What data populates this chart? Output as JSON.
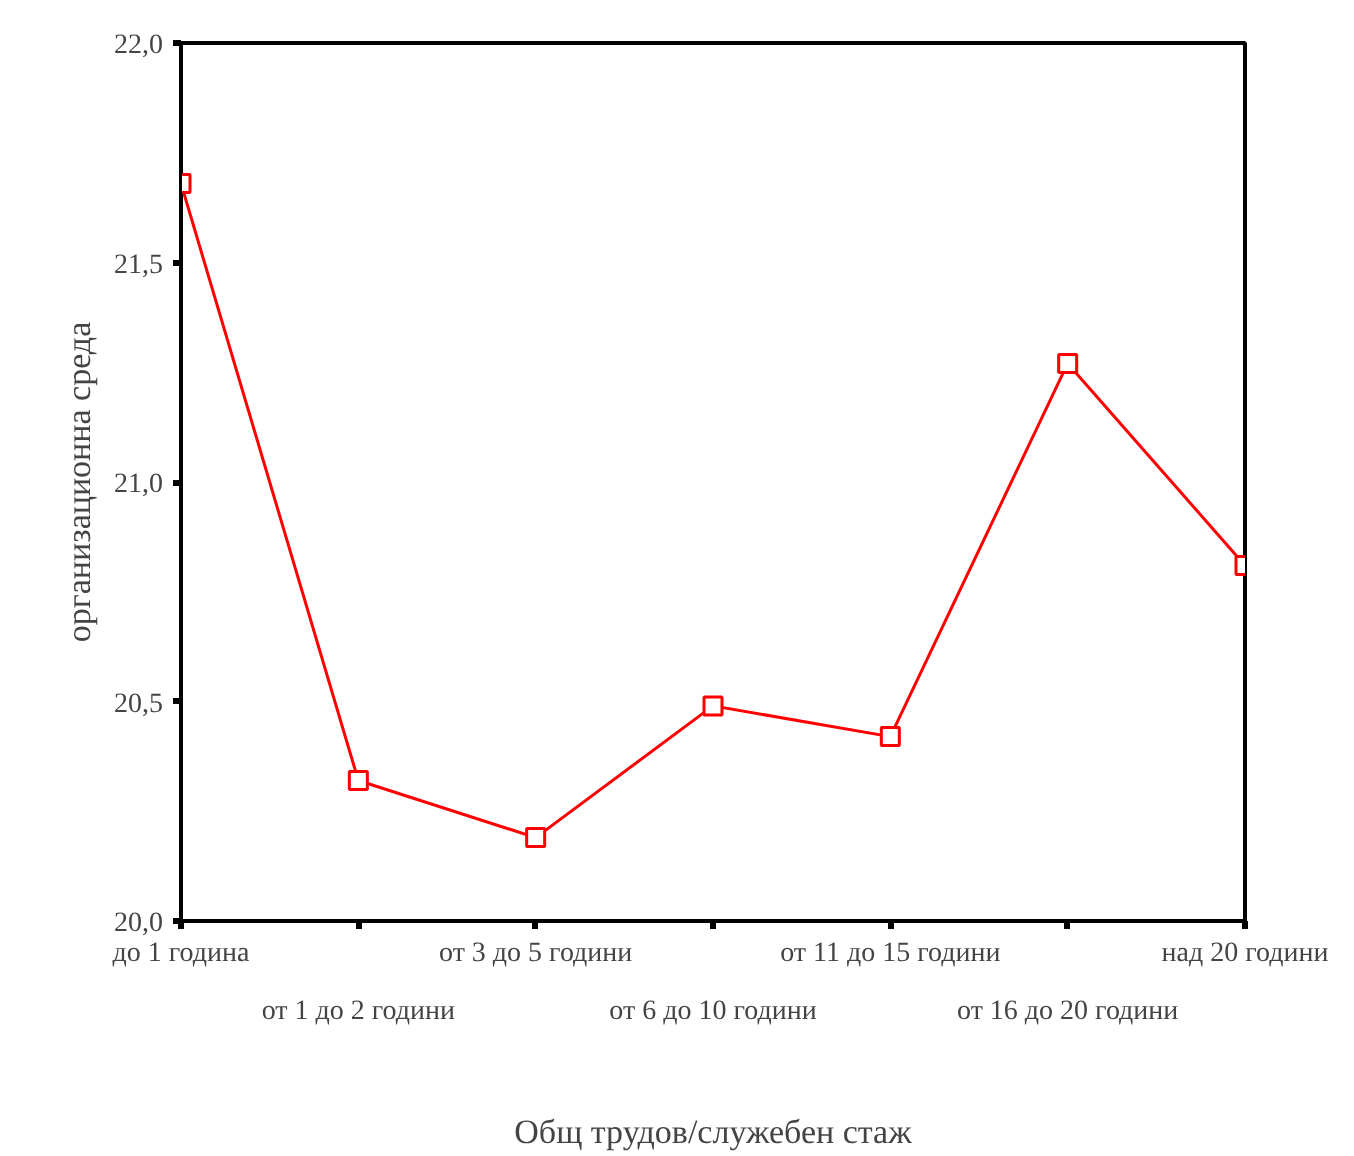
{
  "chart_data": {
    "type": "line",
    "xlabel": "Общ трудов/служебен стаж",
    "ylabel": "организационна среда",
    "categories": [
      "до 1 година",
      "от 1 до 2 години",
      "от 3 до 5 години",
      "от 6 до 10 години",
      "от 11 до 15 години",
      "от 16 до 20 години",
      "над 20 години"
    ],
    "series": [
      {
        "color": "#ff0000",
        "values": [
          21.68,
          20.32,
          20.19,
          20.49,
          20.42,
          21.27,
          20.81
        ]
      }
    ],
    "ylim": [
      20.0,
      22.0
    ],
    "yticks": [
      {
        "value": 20.0,
        "label": "20,0"
      },
      {
        "value": 20.5,
        "label": "20,5"
      },
      {
        "value": 21.0,
        "label": "21,0"
      },
      {
        "value": 21.5,
        "label": "21,5"
      },
      {
        "value": 22.0,
        "label": "22,0"
      }
    ],
    "marker": "square",
    "line_style": "solid",
    "grid": false
  }
}
